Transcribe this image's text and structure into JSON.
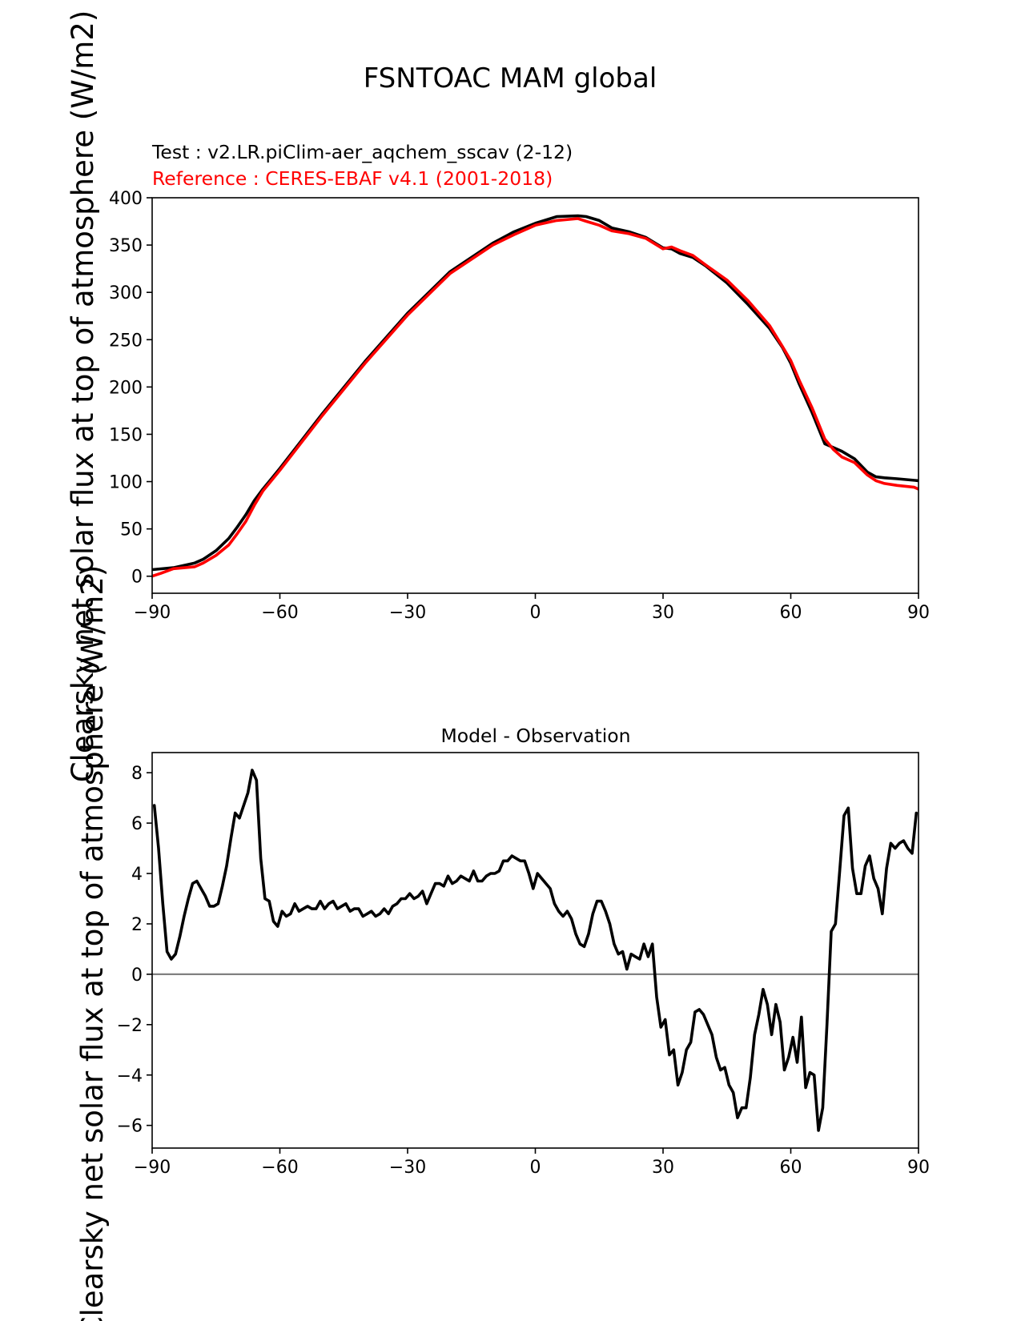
{
  "title": "FSNTOAC MAM global",
  "colors": {
    "test": "#000000",
    "reference": "#ff0000",
    "zero_line": "#808080"
  },
  "chart_data": [
    {
      "type": "line",
      "name": "top-panel",
      "ylabel": "Clearsky net solar flux at top of atmosphere (W/m2)",
      "xlim": [
        -90,
        90
      ],
      "ylim": [
        -18,
        400
      ],
      "xticks": [
        -90,
        -60,
        -30,
        0,
        30,
        60,
        90
      ],
      "xtick_labels": [
        "−90",
        "−60",
        "−30",
        "0",
        "30",
        "60",
        "90"
      ],
      "yticks": [
        0,
        50,
        100,
        150,
        200,
        250,
        300,
        350,
        400
      ],
      "ytick_labels": [
        "0",
        "50",
        "100",
        "150",
        "200",
        "250",
        "300",
        "350",
        "400"
      ],
      "legend": [
        {
          "text": "Test : v2.LR.piClim-aer_aqchem_sscav (2-12)",
          "color": "#000000"
        },
        {
          "text": "Reference : CERES-EBAF v4.1 (2001-2018)",
          "color": "#ff0000"
        }
      ],
      "series": [
        {
          "name": "Test",
          "color": "#000000",
          "x": [
            -90,
            -85,
            -80,
            -78,
            -75,
            -72,
            -70,
            -68,
            -66,
            -64,
            -62,
            -60,
            -50,
            -40,
            -30,
            -20,
            -10,
            -5,
            0,
            5,
            10,
            12,
            15,
            18,
            22,
            26,
            30,
            32,
            34,
            37,
            40,
            45,
            50,
            55,
            58,
            60,
            62,
            65,
            68,
            70,
            72,
            75,
            78,
            80,
            82,
            85,
            90
          ],
          "y": [
            7,
            9,
            14,
            18,
            27,
            40,
            52,
            65,
            80,
            92,
            103,
            114,
            172,
            227,
            278,
            322,
            352,
            364,
            373,
            380,
            381,
            380,
            376,
            368,
            364,
            358,
            347,
            346,
            341,
            337,
            328,
            310,
            287,
            262,
            242,
            225,
            203,
            173,
            140,
            136,
            132,
            124,
            110,
            105,
            104,
            103,
            101
          ]
        },
        {
          "name": "Reference",
          "color": "#ff0000",
          "x": [
            -90,
            -88,
            -85,
            -80,
            -78,
            -75,
            -72,
            -70,
            -68,
            -66,
            -64,
            -62,
            -60,
            -50,
            -40,
            -30,
            -20,
            -10,
            -5,
            0,
            5,
            10,
            12,
            15,
            18,
            22,
            26,
            30,
            32,
            34,
            37,
            40,
            45,
            50,
            55,
            58,
            60,
            62,
            65,
            68,
            70,
            72,
            75,
            78,
            80,
            82,
            85,
            89,
            90
          ],
          "y": [
            0,
            3,
            8,
            10,
            14,
            22,
            33,
            45,
            58,
            75,
            90,
            101,
            112,
            170,
            225,
            276,
            320,
            350,
            361,
            371,
            376,
            378,
            375,
            371,
            365,
            362,
            357,
            346,
            348,
            344,
            339,
            329,
            313,
            291,
            265,
            243,
            228,
            207,
            178,
            145,
            134,
            126,
            120,
            107,
            101,
            98,
            96,
            94,
            92
          ]
        }
      ]
    },
    {
      "type": "line",
      "name": "bottom-panel",
      "title": "Model - Observation",
      "ylabel": "Clearsky net solar flux at top of atmosphere (W/m2)",
      "xlim": [
        -90,
        90
      ],
      "ylim": [
        -6.9,
        8.8
      ],
      "xticks": [
        -90,
        -60,
        -30,
        0,
        30,
        60,
        90
      ],
      "xtick_labels": [
        "−90",
        "−60",
        "−30",
        "0",
        "30",
        "60",
        "90"
      ],
      "yticks": [
        -6,
        -4,
        -2,
        0,
        2,
        4,
        6,
        8
      ],
      "ytick_labels": [
        "−6",
        "−4",
        "−2",
        "0",
        "2",
        "4",
        "6",
        "8"
      ],
      "zero_line": 0,
      "series": [
        {
          "name": "Difference",
          "color": "#000000",
          "x": [
            -89.5,
            -88.5,
            -87.5,
            -86.5,
            -85.5,
            -84.5,
            -83.5,
            -82.5,
            -81.5,
            -80.5,
            -79.5,
            -78.5,
            -77.5,
            -76.5,
            -75.5,
            -74.5,
            -73.5,
            -72.5,
            -71.5,
            -70.5,
            -69.5,
            -68.5,
            -67.5,
            -66.5,
            -65.5,
            -64.5,
            -63.5,
            -62.5,
            -61.5,
            -60.5,
            -59.5,
            -58.5,
            -57.5,
            -56.5,
            -55.5,
            -54.5,
            -53.5,
            -52.5,
            -51.5,
            -50.5,
            -49.5,
            -48.5,
            -47.5,
            -46.5,
            -45.5,
            -44.5,
            -43.5,
            -42.5,
            -41.5,
            -40.5,
            -39.5,
            -38.5,
            -37.5,
            -36.5,
            -35.5,
            -34.5,
            -33.5,
            -32.5,
            -31.5,
            -30.5,
            -29.5,
            -28.5,
            -27.5,
            -26.5,
            -25.5,
            -24.5,
            -23.5,
            -22.5,
            -21.5,
            -20.5,
            -19.5,
            -18.5,
            -17.5,
            -16.5,
            -15.5,
            -14.5,
            -13.5,
            -12.5,
            -11.5,
            -10.5,
            -9.5,
            -8.5,
            -7.5,
            -6.5,
            -5.5,
            -4.5,
            -3.5,
            -2.5,
            -1.5,
            -0.5,
            0.5,
            1.5,
            2.5,
            3.5,
            4.5,
            5.5,
            6.5,
            7.5,
            8.5,
            9.5,
            10.5,
            11.5,
            12.5,
            13.5,
            14.5,
            15.5,
            16.5,
            17.5,
            18.5,
            19.5,
            20.5,
            21.5,
            22.5,
            23.5,
            24.5,
            25.5,
            26.5,
            27.5,
            28.5,
            29.5,
            30.5,
            31.5,
            32.5,
            33.5,
            34.5,
            35.5,
            36.5,
            37.5,
            38.5,
            39.5,
            40.5,
            41.5,
            42.5,
            43.5,
            44.5,
            45.5,
            46.5,
            47.5,
            48.5,
            49.5,
            50.5,
            51.5,
            52.5,
            53.5,
            54.5,
            55.5,
            56.5,
            57.5,
            58.5,
            59.5,
            60.5,
            61.5,
            62.5,
            63.5,
            64.5,
            65.5,
            66.5,
            67.5,
            68.5,
            69.5,
            70.5,
            71.5,
            72.5,
            73.5,
            74.5,
            75.5,
            76.5,
            77.5,
            78.5,
            79.5,
            80.5,
            81.5,
            82.5,
            83.5,
            84.5,
            85.5,
            86.5,
            87.5,
            88.5,
            89.5
          ],
          "y": [
            6.7,
            5.0,
            2.8,
            0.9,
            0.6,
            0.8,
            1.5,
            2.3,
            3.0,
            3.6,
            3.7,
            3.4,
            3.1,
            2.7,
            2.7,
            2.8,
            3.5,
            4.3,
            5.4,
            6.4,
            6.2,
            6.7,
            7.2,
            8.1,
            7.7,
            4.6,
            3.0,
            2.9,
            2.1,
            1.9,
            2.5,
            2.3,
            2.4,
            2.8,
            2.5,
            2.6,
            2.7,
            2.6,
            2.6,
            2.9,
            2.6,
            2.8,
            2.9,
            2.6,
            2.7,
            2.8,
            2.5,
            2.6,
            2.6,
            2.3,
            2.4,
            2.5,
            2.3,
            2.4,
            2.6,
            2.4,
            2.7,
            2.8,
            3.0,
            3.0,
            3.2,
            3.0,
            3.1,
            3.3,
            2.8,
            3.2,
            3.6,
            3.6,
            3.5,
            3.9,
            3.6,
            3.7,
            3.9,
            3.8,
            3.7,
            4.1,
            3.7,
            3.7,
            3.9,
            4.0,
            4.0,
            4.1,
            4.5,
            4.5,
            4.7,
            4.6,
            4.5,
            4.5,
            4.0,
            3.4,
            4.0,
            3.8,
            3.6,
            3.4,
            2.8,
            2.5,
            2.3,
            2.5,
            2.2,
            1.6,
            1.2,
            1.1,
            1.6,
            2.4,
            2.9,
            2.9,
            2.5,
            2.0,
            1.2,
            0.8,
            0.9,
            0.2,
            0.8,
            0.7,
            0.6,
            1.2,
            0.7,
            1.2,
            -0.9,
            -2.1,
            -1.8,
            -3.2,
            -3.0,
            -4.4,
            -3.9,
            -3.0,
            -2.7,
            -1.5,
            -1.4,
            -1.6,
            -2.0,
            -2.4,
            -3.3,
            -3.8,
            -3.7,
            -4.4,
            -4.7,
            -5.7,
            -5.3,
            -5.3,
            -4.1,
            -2.4,
            -1.6,
            -0.6,
            -1.2,
            -2.4,
            -1.2,
            -1.9,
            -3.8,
            -3.3,
            -2.5,
            -3.5,
            -1.7,
            -4.5,
            -3.9,
            -4.0,
            -6.2,
            -5.3,
            -2.0,
            1.7,
            2.0,
            4.1,
            6.3,
            6.6,
            4.2,
            3.2,
            3.2,
            4.3,
            4.7,
            3.8,
            3.4,
            2.4,
            4.2,
            5.2,
            5.0,
            5.2,
            5.3,
            5.0,
            4.8,
            6.4
          ]
        }
      ]
    }
  ]
}
